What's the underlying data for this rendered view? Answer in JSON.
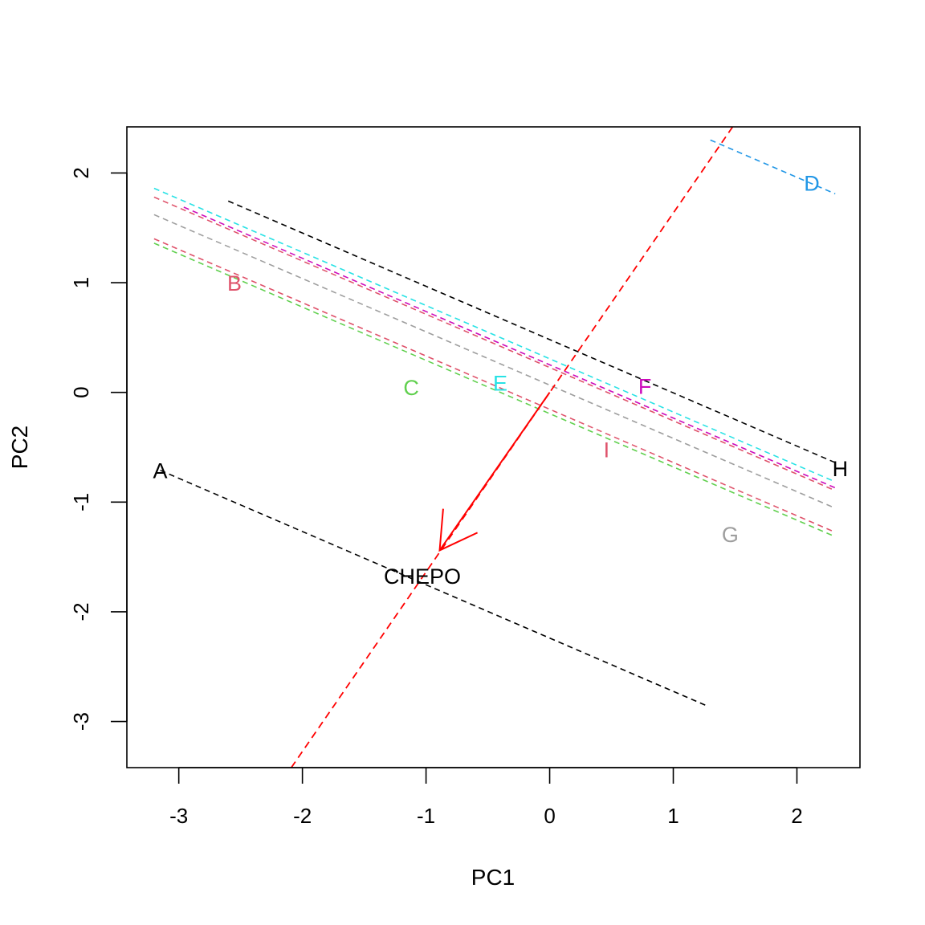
{
  "chart_data": {
    "type": "scatter",
    "title": "",
    "xlabel": "PC1",
    "ylabel": "PC2",
    "xlim": [
      -3.42,
      2.51
    ],
    "ylim": [
      -3.42,
      2.42
    ],
    "x_ticks": [
      -3,
      -2,
      -1,
      0,
      1,
      2
    ],
    "x_tick_labels": [
      "-3",
      "-2",
      "-1",
      "0",
      "1",
      "2"
    ],
    "y_ticks": [
      -3,
      -2,
      -1,
      0,
      1,
      2
    ],
    "y_tick_labels": [
      "-3",
      "-2",
      "-1",
      "0",
      "1",
      "2"
    ],
    "grid": false,
    "slope": -0.4855,
    "points": [
      {
        "label": "A",
        "x": -3.15,
        "y": -0.71,
        "color": "#000000"
      },
      {
        "label": "B",
        "x": -2.55,
        "y": 1.0,
        "color": "#DF536B"
      },
      {
        "label": "C",
        "x": -1.12,
        "y": 0.05,
        "color": "#61D04F"
      },
      {
        "label": "D",
        "x": 2.12,
        "y": 1.91,
        "color": "#2297E6"
      },
      {
        "label": "E",
        "x": -0.4,
        "y": 0.09,
        "color": "#28E2E5"
      },
      {
        "label": "F",
        "x": 0.77,
        "y": 0.06,
        "color": "#CD0BBC"
      },
      {
        "label": "G",
        "x": 1.46,
        "y": -1.29,
        "color": "#9E9E9E"
      },
      {
        "label": "H",
        "x": 2.35,
        "y": -0.69,
        "color": "#000000"
      },
      {
        "label": "I",
        "x": 0.46,
        "y": -0.52,
        "color": "#DF536B"
      }
    ],
    "iso_lines": [
      {
        "color": "#000000",
        "x_from": -3.15,
        "x_to": 1.26,
        "at_x": -3.15,
        "y": -0.71
      },
      {
        "color": "#DF536B",
        "x_from": -3.2,
        "x_to": 2.31,
        "at_x": -3.2,
        "y": 1.4
      },
      {
        "color": "#61D04F",
        "x_from": -3.2,
        "x_to": 2.31,
        "at_x": -3.2,
        "y": 1.36
      },
      {
        "color": "#2297E6",
        "x_from": 1.3,
        "x_to": 2.31,
        "at_x": 2.31,
        "y": 1.81
      },
      {
        "color": "#28E2E5",
        "x_from": -3.2,
        "x_to": 2.31,
        "at_x": -3.2,
        "y": 1.86
      },
      {
        "color": "#CD0BBC",
        "x_from": -2.96,
        "x_to": 2.31,
        "at_x": 2.31,
        "y": -0.87
      },
      {
        "color": "#9E9E9E",
        "x_from": -3.2,
        "x_to": 2.31,
        "at_x": -3.2,
        "y": 1.62
      },
      {
        "color": "#000000",
        "x_from": -2.6,
        "x_to": 2.31,
        "at_x": 2.31,
        "y": -0.64
      },
      {
        "color": "#DF536B",
        "x_from": -3.2,
        "x_to": 2.31,
        "at_x": -3.2,
        "y": 1.78
      }
    ],
    "axis_line": {
      "color": "#FF0000",
      "from": [
        -2.09,
        -3.42
      ],
      "to": [
        1.48,
        2.42
      ]
    },
    "arrow": {
      "label": "CHEPO",
      "color": "#FF0000",
      "from": [
        0,
        0
      ],
      "to": [
        -0.89,
        -1.44
      ],
      "label_x": -1.03,
      "label_y": -1.67
    }
  }
}
